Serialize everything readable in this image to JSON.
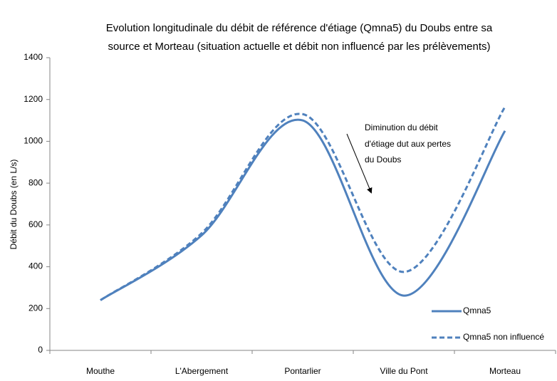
{
  "chart_data": {
    "type": "line",
    "title": [
      "Evolution longitudinale du débit de référence d'étiage (Qmna5) du Doubs entre sa",
      "source et Morteau (situation actuelle et débit non influencé par les prélèvements)"
    ],
    "ylabel": "Débit du Doubs (en L/s)",
    "categories": [
      "Mouthe",
      "L'Abergement",
      "Pontarlier",
      "Ville du Pont",
      "Morteau"
    ],
    "series": [
      {
        "name": "Qmna5",
        "color": "#4f81bd",
        "dash": false,
        "values": [
          240,
          550,
          1100,
          262,
          1050
        ]
      },
      {
        "name": "Qmna5 non influencé",
        "color": "#4f81bd",
        "dash": true,
        "values": [
          240,
          560,
          1130,
          375,
          1165
        ]
      }
    ],
    "ylim": [
      0,
      1400
    ],
    "yticks": [
      0,
      200,
      400,
      600,
      800,
      1000,
      1200,
      1400
    ],
    "grid": false,
    "legend": "lower right",
    "smooth": true,
    "annotation": [
      "Diminution du débit",
      "d'étiage dut aux pertes",
      "du Doubs"
    ]
  }
}
